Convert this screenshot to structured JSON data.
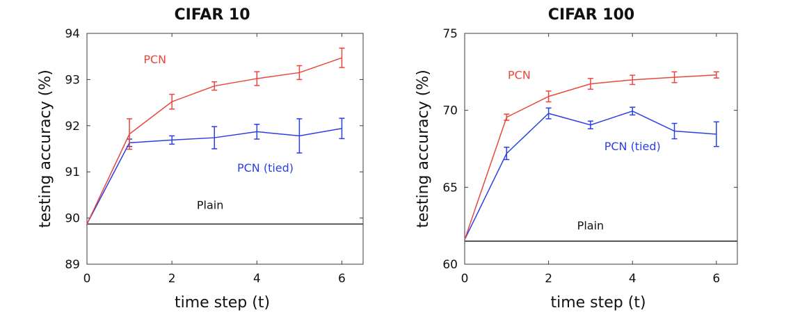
{
  "chart_data": [
    {
      "type": "line",
      "title": "CIFAR 10",
      "xlabel": "time step (t)",
      "ylabel": "testing accuracy (%)",
      "xlim": [
        0,
        6.5
      ],
      "ylim": [
        89,
        94
      ],
      "xticks": [
        "0",
        "2",
        "4",
        "6"
      ],
      "yticks": [
        "89",
        "90",
        "91",
        "92",
        "93",
        "94"
      ],
      "grid": false,
      "legend": "none",
      "series": [
        {
          "name": "PCN",
          "color": "#e8463c",
          "x": [
            0,
            1,
            2,
            3,
            4,
            5,
            6
          ],
          "y": [
            89.87,
            91.82,
            92.52,
            92.86,
            93.02,
            93.15,
            93.47
          ],
          "err": [
            0.0,
            0.33,
            0.16,
            0.09,
            0.15,
            0.15,
            0.21
          ]
        },
        {
          "name": "PCN (tied)",
          "color": "#2a3ee6",
          "x": [
            0,
            1,
            2,
            3,
            4,
            5,
            6
          ],
          "y": [
            89.87,
            91.63,
            91.69,
            91.74,
            91.87,
            91.78,
            91.94
          ],
          "err": [
            0.0,
            0.08,
            0.09,
            0.24,
            0.16,
            0.37,
            0.22
          ]
        },
        {
          "name": "Plain",
          "color": "#444444",
          "x": [
            0,
            6.5
          ],
          "y": [
            89.87,
            89.87
          ],
          "err": [
            0,
            0
          ]
        }
      ],
      "annotations": [
        {
          "text": "PCN",
          "x": 1.6,
          "y": 93.35,
          "color": "#e8463c"
        },
        {
          "text": "PCN (tied)",
          "x": 4.2,
          "y": 91.0,
          "color": "#2a3ee6"
        },
        {
          "text": "Plain",
          "x": 2.9,
          "y": 90.2,
          "color": "#111111"
        }
      ]
    },
    {
      "type": "line",
      "title": "CIFAR 100",
      "xlabel": "time step (t)",
      "ylabel": "testing accuracy (%)",
      "xlim": [
        0,
        6.5
      ],
      "ylim": [
        60,
        75
      ],
      "xticks": [
        "0",
        "2",
        "4",
        "6"
      ],
      "yticks": [
        "60",
        "65",
        "70",
        "75"
      ],
      "grid": false,
      "legend": "none",
      "series": [
        {
          "name": "PCN",
          "color": "#e8463c",
          "x": [
            0,
            1,
            2,
            3,
            4,
            5,
            6
          ],
          "y": [
            61.6,
            69.55,
            70.9,
            71.72,
            71.98,
            72.15,
            72.3
          ],
          "err": [
            0.0,
            0.2,
            0.35,
            0.35,
            0.3,
            0.35,
            0.2
          ]
        },
        {
          "name": "PCN (tied)",
          "color": "#2a3ee6",
          "x": [
            0,
            1,
            2,
            3,
            4,
            5,
            6
          ],
          "y": [
            61.6,
            67.2,
            69.8,
            69.05,
            69.95,
            68.65,
            68.45
          ],
          "err": [
            0.0,
            0.4,
            0.35,
            0.25,
            0.25,
            0.5,
            0.8
          ]
        },
        {
          "name": "Plain",
          "color": "#444444",
          "x": [
            0,
            6.5
          ],
          "y": [
            61.5,
            61.5
          ],
          "err": [
            0,
            0
          ]
        }
      ],
      "annotations": [
        {
          "text": "PCN",
          "x": 1.3,
          "y": 72.05,
          "color": "#e8463c"
        },
        {
          "text": "PCN (tied)",
          "x": 4.0,
          "y": 67.4,
          "color": "#2a3ee6"
        },
        {
          "text": "Plain",
          "x": 3.0,
          "y": 62.25,
          "color": "#111111"
        }
      ]
    }
  ]
}
